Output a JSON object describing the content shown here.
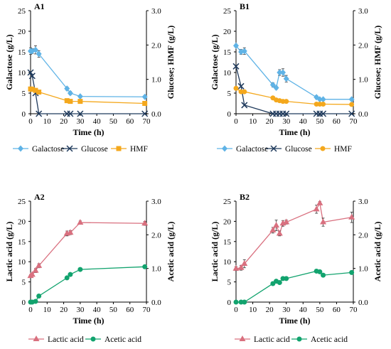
{
  "colors": {
    "galactose": "#5fb3e6",
    "glucose": "#1f3a5c",
    "hmf": "#f4a81d",
    "lactic": "#d9707f",
    "acetic": "#12a36e"
  },
  "chart_data": [
    {
      "type": "line",
      "panel": "A1",
      "xlabel": "Time (h)",
      "ylabel": "Galactose (g/L)",
      "y2label": "Glucose; HMF (g/L)",
      "xlim": [
        0,
        70
      ],
      "ylim": [
        0,
        25
      ],
      "y2lim": [
        0,
        3.0
      ],
      "xticks": [
        "0",
        "10",
        "20",
        "30",
        "40",
        "50",
        "60",
        "70"
      ],
      "yticks": [
        "0",
        "5",
        "10",
        "15",
        "20",
        "25"
      ],
      "y2ticks": [
        "0.0",
        "1.0",
        "2.0",
        "3.0"
      ],
      "series": [
        {
          "name": "Galactose",
          "axis": "left",
          "marker": "diamond",
          "color": "galactose",
          "x": [
            0,
            1,
            3,
            5,
            22,
            24,
            30,
            69
          ],
          "y": [
            15.2,
            15.2,
            15.5,
            14.5,
            6.1,
            5.0,
            4.2,
            4.1
          ],
          "err": [
            0.8,
            0.6,
            1.0,
            0.8,
            0.4,
            0.4,
            0.3,
            0.2
          ]
        },
        {
          "name": "Glucose",
          "axis": "right",
          "marker": "x",
          "color": "glucose",
          "x": [
            0,
            1,
            3,
            5,
            22,
            24,
            30,
            69
          ],
          "y": [
            1.2,
            1.1,
            0.6,
            0.0,
            0.0,
            0.0,
            0.0,
            0.0
          ]
        },
        {
          "name": "HMF",
          "axis": "right",
          "marker": "square",
          "color": "hmf",
          "x": [
            0,
            1,
            3,
            5,
            22,
            24,
            30,
            69
          ],
          "y": [
            0.72,
            0.71,
            0.68,
            0.63,
            0.38,
            0.36,
            0.36,
            0.3
          ]
        }
      ],
      "legend": [
        "Galactose",
        "Glucose",
        "HMF"
      ]
    },
    {
      "type": "line",
      "panel": "B1",
      "xlabel": "Time (h)",
      "ylabel": "Galactose (g/L)",
      "y2label": "Glucose; HMF (g/L)",
      "xlim": [
        0,
        70
      ],
      "ylim": [
        0,
        25
      ],
      "y2lim": [
        0,
        3.0
      ],
      "xticks": [
        "0",
        "10",
        "20",
        "30",
        "40",
        "50",
        "60",
        "70"
      ],
      "yticks": [
        "0",
        "5",
        "10",
        "15",
        "20",
        "25"
      ],
      "y2ticks": [
        "0.0",
        "1.0",
        "2.0",
        "3.0"
      ],
      "series": [
        {
          "name": "Galactose",
          "axis": "left",
          "marker": "diamond",
          "color": "galactose",
          "x": [
            0,
            3,
            5,
            22,
            24,
            26,
            28,
            30,
            48,
            50,
            52,
            69
          ],
          "y": [
            16.5,
            15.0,
            15.2,
            7.0,
            6.3,
            10.0,
            10.0,
            8.5,
            4.0,
            3.5,
            3.5,
            3.5
          ],
          "err": [
            0.4,
            0.6,
            0.8,
            0.5,
            0.4,
            0.7,
            0.9,
            0.8,
            0.4,
            0.3,
            0.3,
            0.2
          ]
        },
        {
          "name": "Glucose",
          "axis": "right",
          "marker": "x",
          "color": "glucose",
          "x": [
            0,
            3,
            5,
            22,
            24,
            26,
            28,
            30,
            48,
            50,
            52,
            69
          ],
          "y": [
            1.38,
            0.8,
            0.25,
            0.0,
            0.0,
            0.0,
            0.0,
            0.0,
            0.0,
            0.0,
            0.0,
            0.0
          ]
        },
        {
          "name": "HMF",
          "axis": "right",
          "marker": "dot",
          "color": "hmf",
          "x": [
            0,
            3,
            5,
            22,
            24,
            26,
            28,
            30,
            48,
            50,
            52,
            69
          ],
          "y": [
            0.74,
            0.64,
            0.64,
            0.46,
            0.4,
            0.38,
            0.36,
            0.36,
            0.28,
            0.28,
            0.28,
            0.27
          ]
        }
      ],
      "legend": [
        "Galactose",
        "Glucose",
        "HMF"
      ]
    },
    {
      "type": "line",
      "panel": "A2",
      "xlabel": "Time (h)",
      "ylabel": "Lactic acid (g/L)",
      "y2label": "Acetic acid (g/L)",
      "xlim": [
        0,
        70
      ],
      "ylim": [
        0,
        25
      ],
      "y2lim": [
        0,
        3.0
      ],
      "xticks": [
        "0",
        "10",
        "20",
        "30",
        "40",
        "50",
        "60",
        "70"
      ],
      "yticks": [
        "0",
        "5",
        "10",
        "15",
        "20",
        "25"
      ],
      "y2ticks": [
        "0.0",
        "1.0",
        "2.0",
        "3.0"
      ],
      "series": [
        {
          "name": "Lactic acid",
          "axis": "left",
          "marker": "triangle",
          "color": "lactic",
          "x": [
            0,
            1,
            3,
            5,
            22,
            24,
            30,
            69
          ],
          "y": [
            6.5,
            6.8,
            7.8,
            9.0,
            17.0,
            17.2,
            19.7,
            19.5
          ],
          "err": [
            0.3,
            0.3,
            0.5,
            0.5,
            0.6,
            0.5,
            0.4,
            0.5
          ]
        },
        {
          "name": "Acetic acid",
          "axis": "right",
          "marker": "dot",
          "color": "acetic",
          "x": [
            0,
            1,
            3,
            5,
            22,
            24,
            30,
            69
          ],
          "y": [
            0.0,
            0.0,
            0.02,
            0.18,
            0.72,
            0.82,
            0.97,
            1.05
          ]
        }
      ],
      "legend": [
        "Lactic acid",
        "Acetic acid"
      ]
    },
    {
      "type": "line",
      "panel": "B2",
      "xlabel": "Time (h)",
      "ylabel": "Lactic acid (g/L)",
      "y2label": "Acetic acid (g/L)",
      "xlim": [
        0,
        70
      ],
      "ylim": [
        0,
        25
      ],
      "y2lim": [
        0,
        3.0
      ],
      "xticks": [
        "0",
        "10",
        "20",
        "30",
        "40",
        "50",
        "60",
        "70"
      ],
      "yticks": [
        "0",
        "5",
        "10",
        "15",
        "20",
        "25"
      ],
      "y2ticks": [
        "0.0",
        "1.0",
        "2.0",
        "3.0"
      ],
      "series": [
        {
          "name": "Lactic acid",
          "axis": "left",
          "marker": "triangle",
          "color": "lactic",
          "x": [
            0,
            3,
            5,
            22,
            24,
            26,
            28,
            30,
            48,
            50,
            52,
            69
          ],
          "y": [
            8.3,
            8.5,
            9.5,
            17.8,
            19.0,
            17.0,
            19.5,
            19.8,
            23.0,
            24.5,
            19.8,
            21.0
          ],
          "err": [
            0.5,
            0.6,
            1.0,
            0.7,
            1.3,
            0.6,
            0.7,
            0.5,
            1.0,
            0.4,
            1.0,
            1.3
          ]
        },
        {
          "name": "Acetic acid",
          "axis": "right",
          "marker": "dot",
          "color": "acetic",
          "x": [
            0,
            3,
            5,
            22,
            24,
            26,
            28,
            30,
            48,
            50,
            52,
            69
          ],
          "y": [
            0.0,
            0.0,
            0.0,
            0.55,
            0.62,
            0.58,
            0.7,
            0.7,
            0.92,
            0.9,
            0.8,
            0.88
          ]
        }
      ],
      "legend": [
        "Lactic acid",
        "Acetic acid"
      ]
    }
  ]
}
